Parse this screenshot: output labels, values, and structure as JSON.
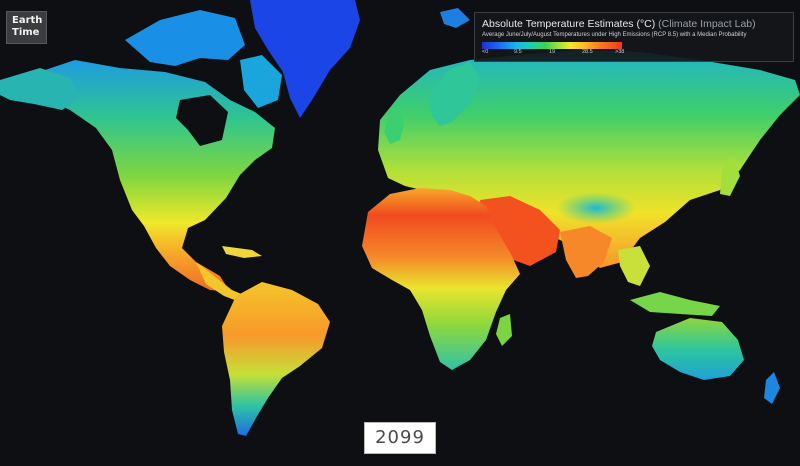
{
  "app": {
    "logo_line1": "Earth",
    "logo_line2": "Time"
  },
  "legend": {
    "title": "Absolute Temperature Estimates (°C)",
    "source": "(Climate Impact Lab)",
    "subtitle": "Average June/July/August Temperatures under High Emissions (RCP 8.5) with a Median Probability",
    "ticks": [
      "<0",
      "9.5",
      "19",
      "28.5",
      ">38"
    ]
  },
  "timeline": {
    "year": "2099"
  },
  "colors": {
    "background": "#0d0f12",
    "cold": "#1e2fd8",
    "cool": "#19b8e6",
    "mild": "#3fcf55",
    "warm": "#f4ea2a",
    "hot": "#fb7b22",
    "hottest": "#f23a1e"
  }
}
